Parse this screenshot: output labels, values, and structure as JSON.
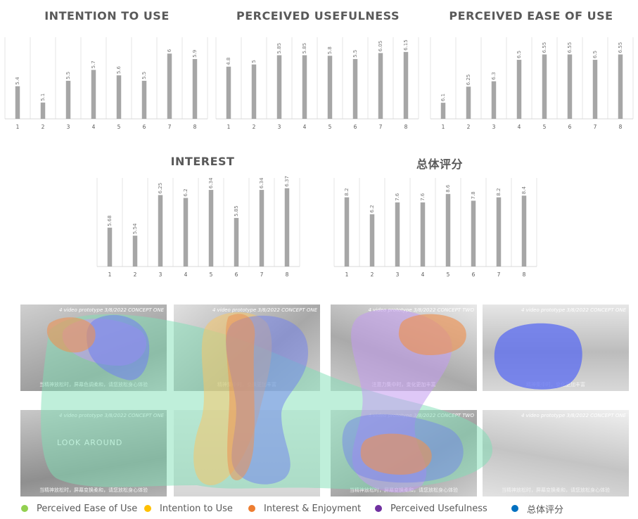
{
  "chart_data": [
    {
      "type": "bar",
      "title": "INTENTION TO USE",
      "categories": [
        "1",
        "2",
        "3",
        "4",
        "5",
        "6",
        "7",
        "8"
      ],
      "values": [
        5.4,
        5.1,
        5.5,
        5.7,
        5.6,
        5.5,
        6,
        5.9
      ],
      "labels": [
        "5.4",
        "5.1",
        "5.5",
        "5.7",
        "5.6",
        "5.5",
        "6",
        "5.9"
      ],
      "ylim": [
        4.8,
        6.3
      ],
      "grid": "vertical",
      "color": "#a6a6a6"
    },
    {
      "type": "bar",
      "title": "PERCEIVED USEFULNESS",
      "categories": [
        "1",
        "2",
        "3",
        "4",
        "5",
        "6",
        "7",
        "8"
      ],
      "values": [
        4.8,
        5,
        5.85,
        5.85,
        5.8,
        5.5,
        6.05,
        6.15
      ],
      "labels": [
        "4.8",
        "5",
        "5.85",
        "5.85",
        "5.8",
        "5.5",
        "6.05",
        "6.15"
      ],
      "ylim": [
        0,
        7.5
      ],
      "grid": "vertical",
      "color": "#a6a6a6"
    },
    {
      "type": "bar",
      "title": "PERCEIVED EASE OF USE",
      "categories": [
        "1",
        "2",
        "3",
        "4",
        "5",
        "6",
        "7",
        "8"
      ],
      "values": [
        6.1,
        6.25,
        6.3,
        6.5,
        6.55,
        6.55,
        6.5,
        6.55
      ],
      "labels": [
        "6.1",
        "6.25",
        "6.3",
        "6.5",
        "6.55",
        "6.55",
        "6.5",
        "6.55"
      ],
      "ylim": [
        5.95,
        6.71
      ],
      "grid": "vertical",
      "color": "#a6a6a6"
    },
    {
      "type": "bar",
      "title": "INTEREST",
      "categories": [
        "1",
        "2",
        "3",
        "4",
        "5",
        "6",
        "7",
        "8"
      ],
      "values": [
        5.68,
        5.54,
        6.25,
        6.2,
        6.34,
        5.85,
        6.34,
        6.37
      ],
      "labels": [
        "5.68",
        "5.54",
        "6.25",
        "6.2",
        "6.34",
        "5.85",
        "6.34",
        "6.37"
      ],
      "ylim": [
        5,
        6.55
      ],
      "grid": "vertical",
      "color": "#a6a6a6"
    },
    {
      "type": "bar",
      "title": "总体评分",
      "categories": [
        "1",
        "2",
        "3",
        "4",
        "5",
        "6",
        "7",
        "8"
      ],
      "values": [
        8.2,
        6.2,
        7.6,
        7.6,
        8.6,
        7.8,
        8.2,
        8.4
      ],
      "labels": [
        "8.2",
        "6.2",
        "7.6",
        "7.6",
        "8.6",
        "7.8",
        "8.2",
        "8.4"
      ],
      "ylim": [
        0,
        10.5
      ],
      "grid": "vertical",
      "color": "#a6a6a6"
    }
  ],
  "photos": [
    {
      "caption": "4 video prototype 3/8/2022  CONCEPT ONE",
      "subtitle": "当精神放松时，屏幕色调柔和，请您放松身心体验"
    },
    {
      "caption": "4 video prototype 3/8/2022  CONCEPT ONE",
      "subtitle": "精神集中时，变换更加丰富"
    },
    {
      "caption": "4 video prototype 3/8/2022  CONCEPT TWO",
      "subtitle": "注意力集中时，变化更加丰富"
    },
    {
      "caption": "4 video prototype 3/8/2022  CONCEPT ONE",
      "subtitle": "精神集中时，变化更加丰富"
    },
    {
      "caption": "4 video prototype 3/8/2022  CONCEPT ONE",
      "subtitle": "当精神放松时，屏幕变换柔和，请您放松身心体验",
      "inner_text": "LOOK AROUND"
    },
    {
      "caption": "",
      "subtitle": ""
    },
    {
      "caption": "4 video prototype 3/8/2022  CONCEPT TWO",
      "subtitle": "当精神放松时，屏幕变换柔和，请您放松身心体验"
    },
    {
      "caption": "4 video prototype 3/8/2022  CONCEPT ONE",
      "subtitle": "当精神放松时，屏幕变换柔和，请您放松身心体验"
    }
  ],
  "legend": [
    {
      "label": "Perceived Ease of Use",
      "color": "#92d050"
    },
    {
      "label": "Intention to Use",
      "color": "#ffc000"
    },
    {
      "label": "Interest & Enjoyment",
      "color": "#ed7d31"
    },
    {
      "label": "Perceived Usefulness",
      "color": "#7030a0"
    },
    {
      "label": "总体评分",
      "color": "#0070c0"
    }
  ]
}
